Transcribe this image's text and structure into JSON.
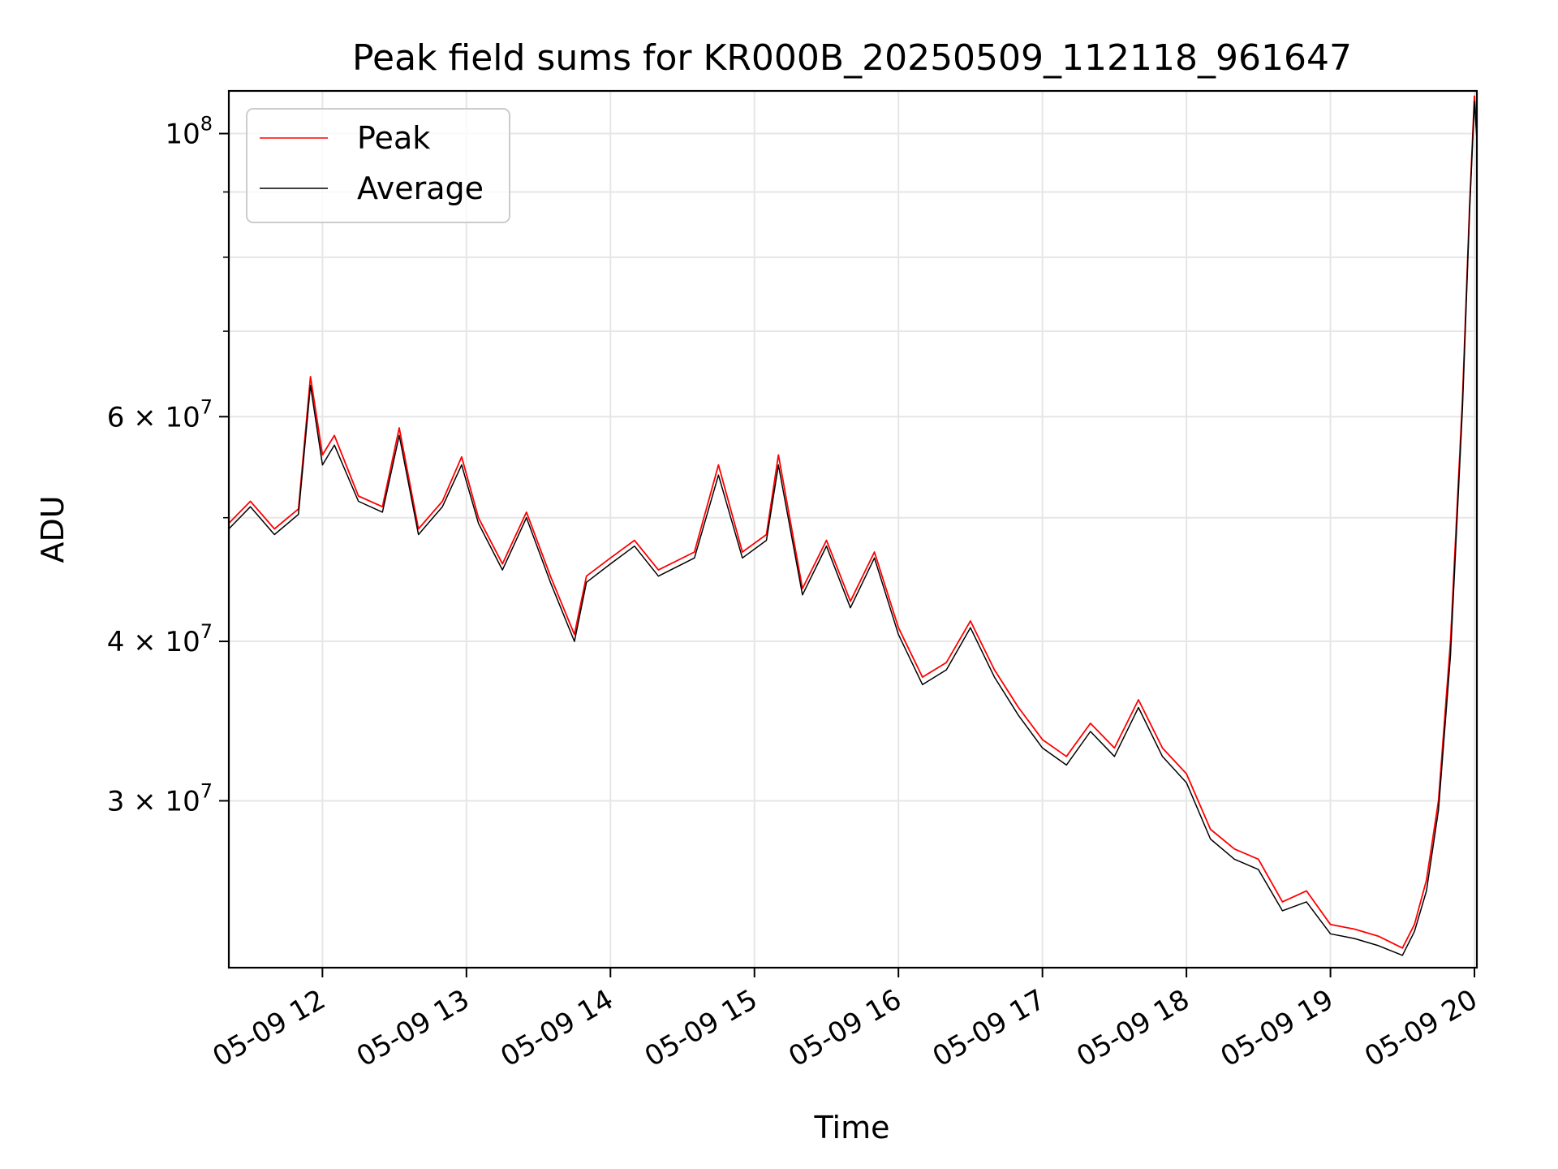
{
  "chart_data": {
    "type": "line",
    "title": "Peak field sums for KR000B_20250509_112118_961647",
    "xlabel": "Time",
    "ylabel": "ADU",
    "y_scale": "log",
    "xlim": [
      "2025-05-09 11:21",
      "2025-05-09 20:01"
    ],
    "ylim": [
      22200000,
      108000000
    ],
    "grid": true,
    "legend_position": "top-left",
    "x_ticks": [
      {
        "value": "2025-05-09 12:00",
        "label": "05-09 12"
      },
      {
        "value": "2025-05-09 13:00",
        "label": "05-09 13"
      },
      {
        "value": "2025-05-09 14:00",
        "label": "05-09 14"
      },
      {
        "value": "2025-05-09 15:00",
        "label": "05-09 15"
      },
      {
        "value": "2025-05-09 16:00",
        "label": "05-09 16"
      },
      {
        "value": "2025-05-09 17:00",
        "label": "05-09 17"
      },
      {
        "value": "2025-05-09 18:00",
        "label": "05-09 18"
      },
      {
        "value": "2025-05-09 19:00",
        "label": "05-09 19"
      },
      {
        "value": "2025-05-09 20:00",
        "label": "05-09 20"
      }
    ],
    "y_ticks": [
      {
        "value": 100000000,
        "base": "10",
        "exp": "8"
      },
      {
        "value": 60000000,
        "base": "6 × 10",
        "exp": "7"
      },
      {
        "value": 40000000,
        "base": "4 × 10",
        "exp": "7"
      },
      {
        "value": 30000000,
        "base": "3 × 10",
        "exp": "7"
      }
    ],
    "y_minor_ticks": [
      50000000,
      70000000,
      80000000,
      90000000
    ],
    "series": [
      {
        "name": "Peak",
        "color": "#ff0000",
        "points": [
          [
            "2025-05-09 11:21",
            49500000
          ],
          [
            "2025-05-09 11:30",
            51500000
          ],
          [
            "2025-05-09 11:40",
            49000000
          ],
          [
            "2025-05-09 11:50",
            50800000
          ],
          [
            "2025-05-09 11:55",
            64500000
          ],
          [
            "2025-05-09 12:00",
            56000000
          ],
          [
            "2025-05-09 12:05",
            58000000
          ],
          [
            "2025-05-09 12:15",
            52000000
          ],
          [
            "2025-05-09 12:25",
            51000000
          ],
          [
            "2025-05-09 12:32",
            58800000
          ],
          [
            "2025-05-09 12:40",
            49000000
          ],
          [
            "2025-05-09 12:50",
            51500000
          ],
          [
            "2025-05-09 12:58",
            55800000
          ],
          [
            "2025-05-09 13:05",
            50000000
          ],
          [
            "2025-05-09 13:15",
            46000000
          ],
          [
            "2025-05-09 13:25",
            50500000
          ],
          [
            "2025-05-09 13:35",
            45000000
          ],
          [
            "2025-05-09 13:45",
            40500000
          ],
          [
            "2025-05-09 13:50",
            45000000
          ],
          [
            "2025-05-09 14:00",
            46500000
          ],
          [
            "2025-05-09 14:10",
            48000000
          ],
          [
            "2025-05-09 14:20",
            45500000
          ],
          [
            "2025-05-09 14:35",
            47000000
          ],
          [
            "2025-05-09 14:45",
            55000000
          ],
          [
            "2025-05-09 14:55",
            47000000
          ],
          [
            "2025-05-09 15:05",
            48500000
          ],
          [
            "2025-05-09 15:10",
            56000000
          ],
          [
            "2025-05-09 15:20",
            44000000
          ],
          [
            "2025-05-09 15:30",
            48000000
          ],
          [
            "2025-05-09 15:40",
            43000000
          ],
          [
            "2025-05-09 15:50",
            47000000
          ],
          [
            "2025-05-09 16:00",
            41000000
          ],
          [
            "2025-05-09 16:10",
            37500000
          ],
          [
            "2025-05-09 16:20",
            38500000
          ],
          [
            "2025-05-09 16:30",
            41500000
          ],
          [
            "2025-05-09 16:40",
            38000000
          ],
          [
            "2025-05-09 16:50",
            35500000
          ],
          [
            "2025-05-09 17:00",
            33500000
          ],
          [
            "2025-05-09 17:10",
            32500000
          ],
          [
            "2025-05-09 17:20",
            34500000
          ],
          [
            "2025-05-09 17:30",
            33000000
          ],
          [
            "2025-05-09 17:40",
            36000000
          ],
          [
            "2025-05-09 17:50",
            33000000
          ],
          [
            "2025-05-09 18:00",
            31500000
          ],
          [
            "2025-05-09 18:10",
            28500000
          ],
          [
            "2025-05-09 18:20",
            27500000
          ],
          [
            "2025-05-09 18:30",
            27000000
          ],
          [
            "2025-05-09 18:40",
            25000000
          ],
          [
            "2025-05-09 18:50",
            25500000
          ],
          [
            "2025-05-09 19:00",
            24000000
          ],
          [
            "2025-05-09 19:10",
            23800000
          ],
          [
            "2025-05-09 19:20",
            23500000
          ],
          [
            "2025-05-09 19:30",
            23000000
          ],
          [
            "2025-05-09 19:35",
            24000000
          ],
          [
            "2025-05-09 19:40",
            26000000
          ],
          [
            "2025-05-09 19:45",
            30000000
          ],
          [
            "2025-05-09 19:50",
            40000000
          ],
          [
            "2025-05-09 19:55",
            62000000
          ],
          [
            "2025-05-09 19:58",
            88000000
          ],
          [
            "2025-05-09 20:00",
            107000000
          ],
          [
            "2025-05-09 20:01",
            100000000
          ]
        ]
      },
      {
        "name": "Average",
        "color": "#000000",
        "points": [
          [
            "2025-05-09 11:21",
            49000000
          ],
          [
            "2025-05-09 11:30",
            51000000
          ],
          [
            "2025-05-09 11:40",
            48500000
          ],
          [
            "2025-05-09 11:50",
            50300000
          ],
          [
            "2025-05-09 11:55",
            63500000
          ],
          [
            "2025-05-09 12:00",
            55000000
          ],
          [
            "2025-05-09 12:05",
            57000000
          ],
          [
            "2025-05-09 12:15",
            51500000
          ],
          [
            "2025-05-09 12:25",
            50500000
          ],
          [
            "2025-05-09 12:32",
            58000000
          ],
          [
            "2025-05-09 12:40",
            48500000
          ],
          [
            "2025-05-09 12:50",
            51000000
          ],
          [
            "2025-05-09 12:58",
            55000000
          ],
          [
            "2025-05-09 13:05",
            49500000
          ],
          [
            "2025-05-09 13:15",
            45500000
          ],
          [
            "2025-05-09 13:25",
            50000000
          ],
          [
            "2025-05-09 13:35",
            44500000
          ],
          [
            "2025-05-09 13:45",
            40000000
          ],
          [
            "2025-05-09 13:50",
            44500000
          ],
          [
            "2025-05-09 14:00",
            46000000
          ],
          [
            "2025-05-09 14:10",
            47500000
          ],
          [
            "2025-05-09 14:20",
            45000000
          ],
          [
            "2025-05-09 14:35",
            46500000
          ],
          [
            "2025-05-09 14:45",
            54000000
          ],
          [
            "2025-05-09 14:55",
            46500000
          ],
          [
            "2025-05-09 15:05",
            48000000
          ],
          [
            "2025-05-09 15:10",
            55000000
          ],
          [
            "2025-05-09 15:20",
            43500000
          ],
          [
            "2025-05-09 15:30",
            47500000
          ],
          [
            "2025-05-09 15:40",
            42500000
          ],
          [
            "2025-05-09 15:50",
            46500000
          ],
          [
            "2025-05-09 16:00",
            40500000
          ],
          [
            "2025-05-09 16:10",
            37000000
          ],
          [
            "2025-05-09 16:20",
            38000000
          ],
          [
            "2025-05-09 16:30",
            41000000
          ],
          [
            "2025-05-09 16:40",
            37500000
          ],
          [
            "2025-05-09 16:50",
            35000000
          ],
          [
            "2025-05-09 17:00",
            33000000
          ],
          [
            "2025-05-09 17:10",
            32000000
          ],
          [
            "2025-05-09 17:20",
            34000000
          ],
          [
            "2025-05-09 17:30",
            32500000
          ],
          [
            "2025-05-09 17:40",
            35500000
          ],
          [
            "2025-05-09 17:50",
            32500000
          ],
          [
            "2025-05-09 18:00",
            31000000
          ],
          [
            "2025-05-09 18:10",
            28000000
          ],
          [
            "2025-05-09 18:20",
            27000000
          ],
          [
            "2025-05-09 18:30",
            26500000
          ],
          [
            "2025-05-09 18:40",
            24600000
          ],
          [
            "2025-05-09 18:50",
            25000000
          ],
          [
            "2025-05-09 19:00",
            23600000
          ],
          [
            "2025-05-09 19:10",
            23400000
          ],
          [
            "2025-05-09 19:20",
            23100000
          ],
          [
            "2025-05-09 19:30",
            22700000
          ],
          [
            "2025-05-09 19:35",
            23700000
          ],
          [
            "2025-05-09 19:40",
            25500000
          ],
          [
            "2025-05-09 19:45",
            29500000
          ],
          [
            "2025-05-09 19:50",
            39000000
          ],
          [
            "2025-05-09 19:55",
            61000000
          ],
          [
            "2025-05-09 19:58",
            87000000
          ],
          [
            "2025-05-09 20:00",
            106000000
          ],
          [
            "2025-05-09 20:01",
            99000000
          ]
        ]
      }
    ]
  }
}
